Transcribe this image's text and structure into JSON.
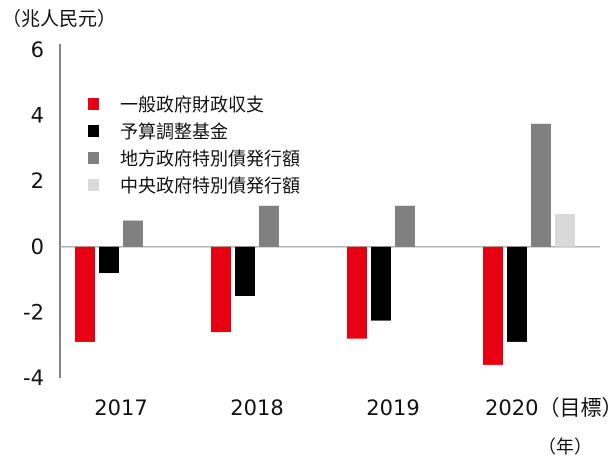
{
  "chart_data": {
    "type": "bar",
    "unit_label": "（兆人民元）",
    "x_unit_label": "（年）",
    "categories": [
      "2017",
      "2018",
      "2019",
      "2020（目標）"
    ],
    "ylim": [
      -4,
      6
    ],
    "yticks": [
      "6",
      "4",
      "2",
      "0",
      "-2",
      "-4"
    ],
    "ytick_values": [
      6,
      4,
      2,
      0,
      -2,
      -4
    ],
    "grid": false,
    "legend_position": "top-left",
    "series": [
      {
        "name": "一般政府財政収支",
        "color": "#e60012",
        "values": [
          -2.9,
          -2.6,
          -2.8,
          -3.6
        ]
      },
      {
        "name": "予算調整基金",
        "color": "#000000",
        "values": [
          -0.8,
          -1.5,
          -2.25,
          -2.9
        ]
      },
      {
        "name": "地方政府特別債発行額",
        "color": "#808080",
        "values": [
          0.8,
          1.25,
          1.25,
          3.75
        ]
      },
      {
        "name": "中央政府特別債発行額",
        "color": "#d9d9d9",
        "values": [
          null,
          null,
          null,
          1.0
        ]
      }
    ]
  }
}
